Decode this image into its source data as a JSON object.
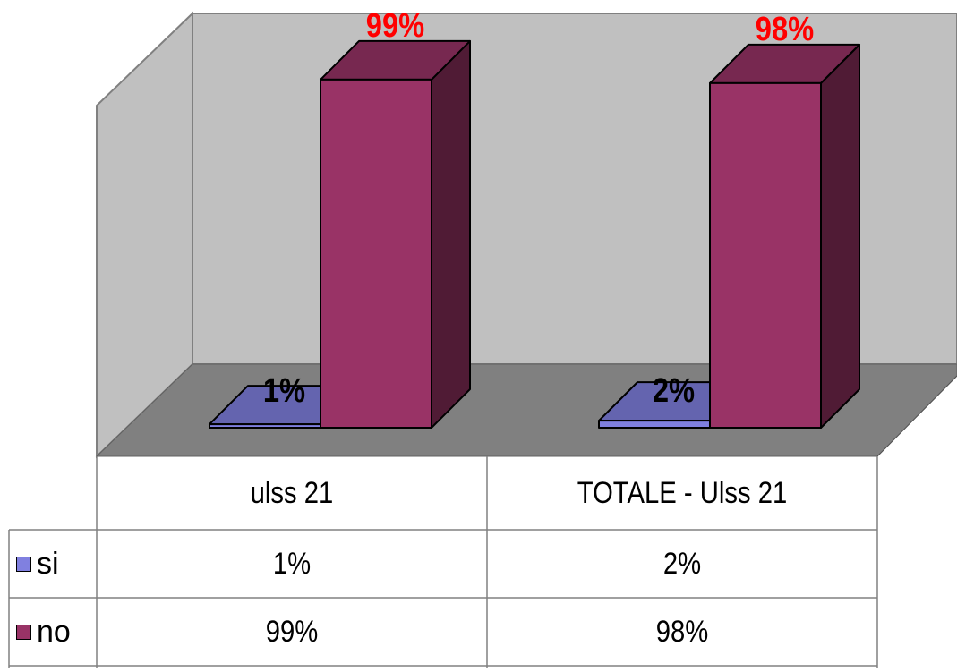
{
  "chart_data": {
    "type": "bar",
    "style": "3d-clustered-column",
    "categories": [
      "ulss 21",
      "TOTALE - Ulss 21"
    ],
    "series": [
      {
        "name": "si",
        "values": [
          1,
          2
        ],
        "labels": [
          "1%",
          "2%"
        ],
        "color": "#8080e0"
      },
      {
        "name": "no",
        "values": [
          99,
          98
        ],
        "labels": [
          "99%",
          "98%"
        ],
        "color": "#993366"
      }
    ],
    "ylim": [
      0,
      100
    ],
    "data_label_colors": {
      "si": "#000000",
      "no": "#ff0000"
    },
    "legend": "data-table",
    "grid": false,
    "wall_color": "#c0c0c0",
    "floor_color": "#808080"
  }
}
